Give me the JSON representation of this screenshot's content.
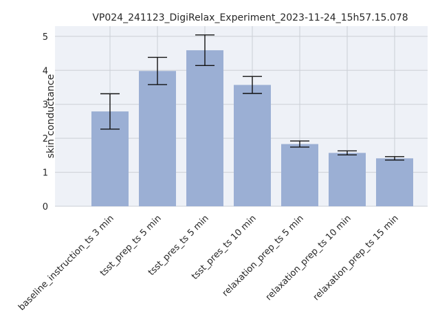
{
  "chart_data": {
    "type": "bar",
    "title": "VP024_241123_DigiRelax_Experiment_2023-11-24_15h57.15.078",
    "xlabel": "",
    "ylabel": "skin conductance",
    "categories": [
      "baseline_instruction_ts 3 min",
      "tsst_prep_ts 5 min",
      "tsst_pres_ts 5 min",
      "tsst_pres_ts 10 min",
      "relaxation_prep_ts 5 min",
      "relaxation_prep_ts 10 min",
      "relaxation_prep_ts 15 min"
    ],
    "values": [
      2.79,
      3.98,
      4.59,
      3.57,
      1.83,
      1.57,
      1.41
    ],
    "error": [
      0.52,
      0.4,
      0.45,
      0.25,
      0.09,
      0.06,
      0.05
    ],
    "ylim": [
      0,
      5.3
    ],
    "yticks": [
      0,
      1,
      2,
      3,
      4,
      5
    ],
    "grid": true,
    "bar_color": "#9bafd4",
    "background_color": "#eef1f7"
  }
}
